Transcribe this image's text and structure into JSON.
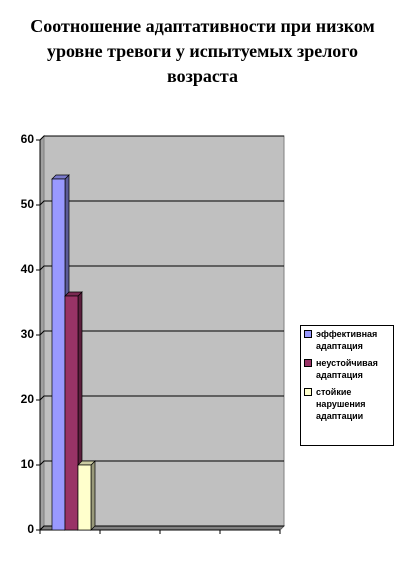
{
  "chart_data": {
    "type": "bar",
    "title": "Соотношение адаптативности при низком уровне тревоги у испытуемых зрелого возраста",
    "categories": [
      null,
      null,
      null,
      null
    ],
    "series": [
      {
        "name": "эффективная адаптация",
        "color": "#9999ff",
        "values": [
          54,
          null,
          null,
          null
        ]
      },
      {
        "name": "неустойчивая адаптация",
        "color": "#993366",
        "values": [
          36,
          null,
          null,
          null
        ]
      },
      {
        "name": "стойкие нарушения адаптации",
        "color": "#ffffcc",
        "values": [
          10,
          null,
          null,
          null
        ]
      }
    ],
    "ylim": [
      0,
      60
    ],
    "yticks": [
      0,
      10,
      20,
      30,
      40,
      50,
      60
    ],
    "grid": true,
    "legend": "right"
  }
}
